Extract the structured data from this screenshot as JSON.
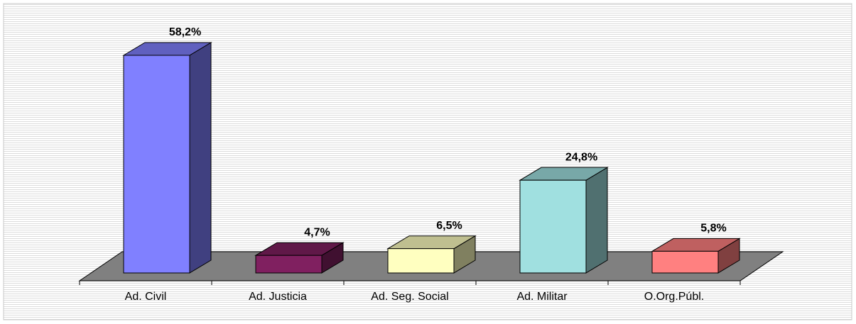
{
  "chart_data": {
    "type": "bar3d",
    "categories": [
      "Ad. Civil",
      "Ad. Justicia",
      "Ad. Seg. Social",
      "Ad. Militar",
      "O.Org.Públ."
    ],
    "values": [
      58.2,
      4.7,
      6.5,
      24.8,
      5.8
    ],
    "value_labels": [
      "58,2%",
      "4,7%",
      "6,5%",
      "24,8%",
      "5,8%"
    ],
    "colors": [
      "#8080ff",
      "#802060",
      "#ffffc0",
      "#a0e0e0",
      "#ff8080"
    ]
  }
}
